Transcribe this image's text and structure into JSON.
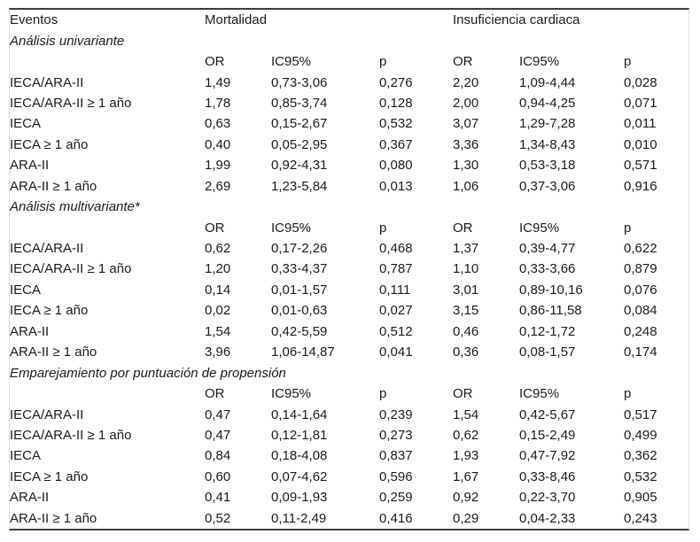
{
  "table": {
    "header": {
      "events": "Eventos",
      "group1": "Mortalidad",
      "group2": "Insuficiencia cardiaca"
    },
    "col_headers": {
      "or": "OR",
      "ic95": "IC95%",
      "p": "p"
    },
    "sections": [
      {
        "title": "Análisis univariante",
        "rows": [
          {
            "label": "IECA/ARA-II",
            "m_or": "1,49",
            "m_ic95": "0,73-3,06",
            "m_p": "0,276",
            "h_or": "2,20",
            "h_ic95": "1,09-4,44",
            "h_p": "0,028"
          },
          {
            "label": "IECA/ARA-II ≥ 1 año",
            "m_or": "1,78",
            "m_ic95": "0,85-3,74",
            "m_p": "0,128",
            "h_or": "2,00",
            "h_ic95": "0,94-4,25",
            "h_p": "0,071"
          },
          {
            "label": "IECA",
            "m_or": "0,63",
            "m_ic95": "0,15-2,67",
            "m_p": "0,532",
            "h_or": "3,07",
            "h_ic95": "1,29-7,28",
            "h_p": "0,011"
          },
          {
            "label": "IECA ≥ 1 año",
            "m_or": "0,40",
            "m_ic95": "0,05-2,95",
            "m_p": "0,367",
            "h_or": "3,36",
            "h_ic95": "1,34-8,43",
            "h_p": "0,010"
          },
          {
            "label": "ARA-II",
            "m_or": "1,99",
            "m_ic95": "0,92-4,31",
            "m_p": "0,080",
            "h_or": "1,30",
            "h_ic95": "0,53-3,18",
            "h_p": "0,571"
          },
          {
            "label": "ARA-II ≥ 1 año",
            "m_or": "2,69",
            "m_ic95": "1,23-5,84",
            "m_p": "0,013",
            "h_or": "1,06",
            "h_ic95": "0,37-3,06",
            "h_p": "0,916"
          }
        ]
      },
      {
        "title": "Análisis multivariante*",
        "rows": [
          {
            "label": "IECA/ARA-II",
            "m_or": "0,62",
            "m_ic95": "0,17-2,26",
            "m_p": "0,468",
            "h_or": "1,37",
            "h_ic95": "0,39-4,77",
            "h_p": "0,622"
          },
          {
            "label": "IECA/ARA-II ≥ 1 año",
            "m_or": "1,20",
            "m_ic95": "0,33-4,37",
            "m_p": "0,787",
            "h_or": "1,10",
            "h_ic95": "0,33-3,66",
            "h_p": "0,879"
          },
          {
            "label": "IECA",
            "m_or": "0,14",
            "m_ic95": "0,01-1,57",
            "m_p": "0,111",
            "h_or": "3,01",
            "h_ic95": "0,89-10,16",
            "h_p": "0,076"
          },
          {
            "label": "IECA ≥ 1 año",
            "m_or": "0,02",
            "m_ic95": "0,01-0,63",
            "m_p": "0,027",
            "h_or": "3,15",
            "h_ic95": "0,86-11,58",
            "h_p": "0,084"
          },
          {
            "label": "ARA-II",
            "m_or": "1,54",
            "m_ic95": "0,42-5,59",
            "m_p": "0,512",
            "h_or": "0,46",
            "h_ic95": "0,12-1,72",
            "h_p": "0,248"
          },
          {
            "label": "ARA-II ≥ 1 año",
            "m_or": "3,96",
            "m_ic95": "1,06-14,87",
            "m_p": "0,041",
            "h_or": "0,36",
            "h_ic95": "0,08-1,57",
            "h_p": "0,174"
          }
        ]
      },
      {
        "title": "Emparejamiento por puntuación de propensión",
        "rows": [
          {
            "label": "IECA/ARA-II",
            "m_or": "0,47",
            "m_ic95": "0,14-1,64",
            "m_p": "0,239",
            "h_or": "1,54",
            "h_ic95": "0,42-5,67",
            "h_p": "0,517"
          },
          {
            "label": "IECA/ARA-II ≥ 1 año",
            "m_or": "0,47",
            "m_ic95": "0,12-1,81",
            "m_p": "0,273",
            "h_or": "0,62",
            "h_ic95": "0,15-2,49",
            "h_p": "0,499"
          },
          {
            "label": "IECA",
            "m_or": "0,84",
            "m_ic95": "0,18-4,08",
            "m_p": "0,837",
            "h_or": "1,93",
            "h_ic95": "0,47-7,92",
            "h_p": "0,362"
          },
          {
            "label": "IECA ≥ 1 año",
            "m_or": "0,60",
            "m_ic95": "0,07-4,62",
            "m_p": "0,596",
            "h_or": "1,67",
            "h_ic95": "0,33-8,46",
            "h_p": "0,532"
          },
          {
            "label": "ARA-II",
            "m_or": "0,41",
            "m_ic95": "0,09-1,93",
            "m_p": "0,259",
            "h_or": "0,92",
            "h_ic95": "0,22-3,70",
            "h_p": "0,905"
          },
          {
            "label": "ARA-II ≥ 1 año",
            "m_or": "0,52",
            "m_ic95": "0,11-2,49",
            "m_p": "0,416",
            "h_or": "0,29",
            "h_ic95": "0,04-2,33",
            "h_p": "0,243"
          }
        ]
      }
    ]
  }
}
